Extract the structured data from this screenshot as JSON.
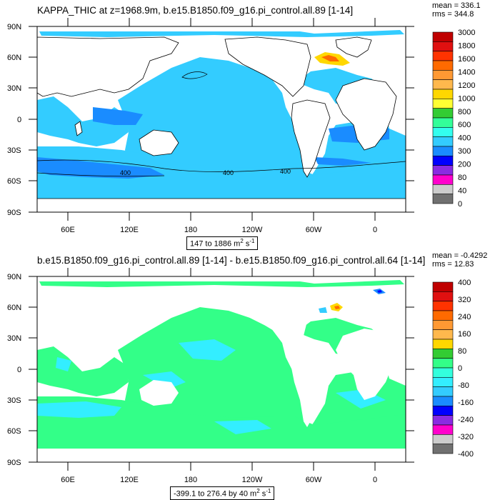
{
  "panels": [
    {
      "title": "KAPPA_THIC at z=1968.9m, b.e15.B1850.f09_g16.pi_control.all.89 [1-14]",
      "stats": {
        "mean": "mean = 336.1",
        "rms": "rms = 344.8"
      },
      "range_label": "147 to 1886 m",
      "range_units": "2",
      "range_suffix": " s",
      "range_exp": "-1",
      "legend": {
        "labels": [
          "3000",
          "1800",
          "1600",
          "1400",
          "1200",
          "1000",
          "800",
          "600",
          "400",
          "300",
          "200",
          "80",
          "40",
          "0"
        ],
        "colors": [
          "#c00000",
          "#e01010",
          "#ff3300",
          "#ff6a00",
          "#ff9933",
          "#ffb84d",
          "#ffd700",
          "#ffff33",
          "#33cc33",
          "#33ff99",
          "#33ffee",
          "#33ccff",
          "#1a8cff",
          "#0000ff",
          "#8a2be2",
          "#ff00cc",
          "#cccccc",
          "#707070"
        ]
      },
      "contour_labels": [
        "400",
        "400",
        "400"
      ]
    },
    {
      "title": "b.e15.B1850.f09_g16.pi_control.all.89 [1-14] - b.e15.B1850.f09_g16.pi_control.all.64 [1-14]",
      "stats": {
        "mean": "mean = -0.4292",
        "rms": "rms = 12.83"
      },
      "range_label": "-399.1 to 276.4 by 40 m",
      "range_units": "2",
      "range_suffix": " s",
      "range_exp": "-1",
      "legend": {
        "labels": [
          "400",
          "320",
          "240",
          "160",
          "80",
          "0",
          "-80",
          "-160",
          "-240",
          "-320",
          "-400"
        ],
        "colors": [
          "#c00000",
          "#e01010",
          "#ff3300",
          "#ff6a00",
          "#ff9933",
          "#ffb84d",
          "#ffd700",
          "#33cc33",
          "#33ff88",
          "#33ffdd",
          "#33eeff",
          "#33ccff",
          "#1a8cff",
          "#0000ff",
          "#8a2be2",
          "#ff00cc",
          "#cccccc",
          "#707070"
        ]
      }
    }
  ],
  "axes": {
    "lat_labels": [
      "90N",
      "60N",
      "30N",
      "0",
      "30S",
      "60S",
      "90S"
    ],
    "lon_labels": [
      "60E",
      "120E",
      "180",
      "120W",
      "60W",
      "0"
    ]
  },
  "colors": {
    "ocean_main_top": "#33ccff",
    "ocean_strong_top": "#1a8cff",
    "ocean_main_bottom": "#33ff88",
    "ocean_alt_bottom": "#33eeff",
    "land": "#ffffff"
  }
}
